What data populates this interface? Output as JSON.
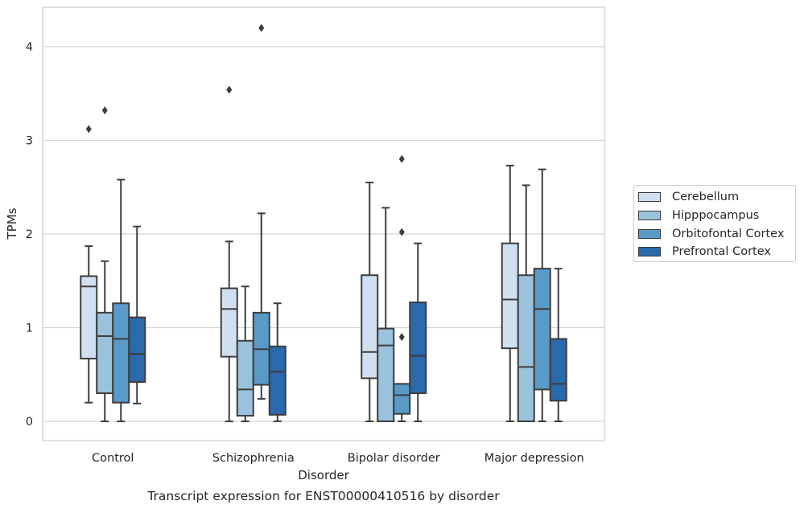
{
  "chart_data": {
    "type": "box",
    "xlabel": "Disorder",
    "ylabel": "TPMs",
    "caption": "Transcript expression for ENST00000410516 by disorder",
    "ylim": [
      -0.2,
      4.4
    ],
    "yticks": [
      0,
      1,
      2,
      3,
      4
    ],
    "ytick_labels": [
      "0",
      "1",
      "2",
      "3",
      "4"
    ],
    "grid": "horizontal",
    "legend_position": "right",
    "categories": [
      "Control",
      "Schizophrenia",
      "Bipolar disorder",
      "Major depression"
    ],
    "series": [
      {
        "name": "Cerebellum",
        "color": "#d1e0f0",
        "boxes": [
          {
            "whisker_low": 0.2,
            "q1": 0.67,
            "median": 1.44,
            "q3": 1.55,
            "whisker_high": 1.87,
            "outliers": [
              3.12
            ]
          },
          {
            "whisker_low": 0.0,
            "q1": 0.69,
            "median": 1.2,
            "q3": 1.42,
            "whisker_high": 1.92,
            "outliers": [
              3.54
            ]
          },
          {
            "whisker_low": 0.0,
            "q1": 0.46,
            "median": 0.74,
            "q3": 1.56,
            "whisker_high": 2.55,
            "outliers": []
          },
          {
            "whisker_low": 0.0,
            "q1": 0.78,
            "median": 1.3,
            "q3": 1.9,
            "whisker_high": 2.73,
            "outliers": []
          }
        ]
      },
      {
        "name": "Hipppocampus",
        "color": "#9ac2dc",
        "boxes": [
          {
            "whisker_low": 0.0,
            "q1": 0.3,
            "median": 0.91,
            "q3": 1.16,
            "whisker_high": 1.71,
            "outliers": [
              3.32
            ]
          },
          {
            "whisker_low": 0.0,
            "q1": 0.06,
            "median": 0.34,
            "q3": 0.86,
            "whisker_high": 1.44,
            "outliers": []
          },
          {
            "whisker_low": 0.0,
            "q1": 0.0,
            "median": 0.81,
            "q3": 0.99,
            "whisker_high": 2.28,
            "outliers": []
          },
          {
            "whisker_low": 0.0,
            "q1": 0.0,
            "median": 0.58,
            "q3": 1.56,
            "whisker_high": 2.52,
            "outliers": []
          }
        ]
      },
      {
        "name": "Orbitofontal Cortex",
        "color": "#5a9ac8",
        "boxes": [
          {
            "whisker_low": 0.0,
            "q1": 0.2,
            "median": 0.88,
            "q3": 1.26,
            "whisker_high": 2.58,
            "outliers": []
          },
          {
            "whisker_low": 0.24,
            "q1": 0.39,
            "median": 0.77,
            "q3": 1.16,
            "whisker_high": 2.22,
            "outliers": [
              4.2
            ]
          },
          {
            "whisker_low": 0.0,
            "q1": 0.08,
            "median": 0.28,
            "q3": 0.4,
            "whisker_high": 0.4,
            "outliers": [
              0.9,
              2.02,
              2.8
            ]
          },
          {
            "whisker_low": 0.0,
            "q1": 0.34,
            "median": 1.2,
            "q3": 1.63,
            "whisker_high": 2.69,
            "outliers": []
          }
        ]
      },
      {
        "name": "Prefrontal Cortex",
        "color": "#2a69ab",
        "boxes": [
          {
            "whisker_low": 0.19,
            "q1": 0.42,
            "median": 0.72,
            "q3": 1.11,
            "whisker_high": 2.08,
            "outliers": []
          },
          {
            "whisker_low": 0.0,
            "q1": 0.07,
            "median": 0.53,
            "q3": 0.8,
            "whisker_high": 1.26,
            "outliers": []
          },
          {
            "whisker_low": 0.0,
            "q1": 0.3,
            "median": 0.7,
            "q3": 1.27,
            "whisker_high": 1.9,
            "outliers": []
          },
          {
            "whisker_low": 0.0,
            "q1": 0.22,
            "median": 0.4,
            "q3": 0.88,
            "whisker_high": 1.63,
            "outliers": []
          }
        ]
      }
    ]
  }
}
